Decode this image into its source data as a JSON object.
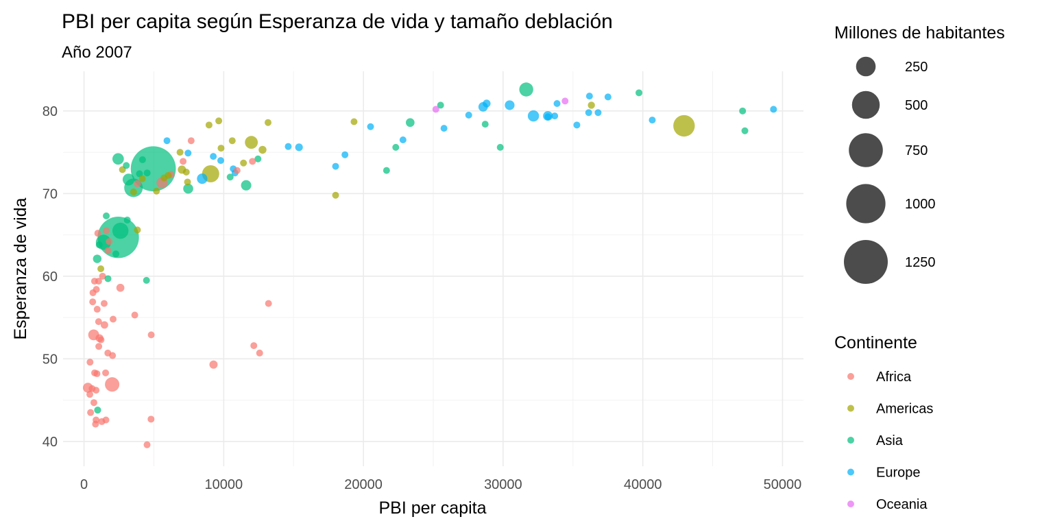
{
  "chart_data": {
    "type": "scatter",
    "title": "PBI per capita según Esperanza de vida y tamaño deblación",
    "subtitle": "Año 2007",
    "xlabel": "PBI per capita",
    "ylabel": "Esperanza de vida",
    "xlim": [
      -1500,
      51500
    ],
    "ylim": [
      37,
      84.8
    ],
    "x_ticks": [
      0,
      10000,
      20000,
      30000,
      40000,
      50000
    ],
    "x_tick_labels": [
      "0",
      "10000",
      "20000",
      "30000",
      "40000",
      "50000"
    ],
    "y_ticks": [
      40,
      50,
      60,
      70,
      80
    ],
    "y_tick_labels": [
      "40",
      "50",
      "60",
      "70",
      "80"
    ],
    "grid": true,
    "size_legend": {
      "title": "Millones de habitantes",
      "entries": [
        {
          "label": "250",
          "value": 250
        },
        {
          "label": "500",
          "value": 500
        },
        {
          "label": "750",
          "value": 750
        },
        {
          "label": "1000",
          "value": 1000
        },
        {
          "label": "1250",
          "value": 1250
        }
      ]
    },
    "color_legend": {
      "title": "Continente",
      "entries": [
        {
          "label": "Africa",
          "color": "#F8766D"
        },
        {
          "label": "Americas",
          "color": "#A3A500"
        },
        {
          "label": "Asia",
          "color": "#00BF7D"
        },
        {
          "label": "Europe",
          "color": "#00B0F6"
        },
        {
          "label": "Oceania",
          "color": "#E76BF3"
        }
      ]
    },
    "series": [
      {
        "name": "Africa",
        "color": "#F8766D",
        "points": [
          [
            6223,
            72.3,
            33
          ],
          [
            4797,
            42.7,
            12
          ],
          [
            1441,
            56.7,
            8
          ],
          [
            12570,
            50.7,
            2
          ],
          [
            1217,
            52.3,
            14
          ],
          [
            430,
            49.6,
            8
          ],
          [
            2042,
            50.4,
            18
          ],
          [
            706,
            44.7,
            4
          ],
          [
            1704,
            50.7,
            10
          ],
          [
            986,
            65.2,
            1
          ],
          [
            278,
            46.5,
            65
          ],
          [
            3633,
            55.3,
            4
          ],
          [
            1545,
            48.3,
            18
          ],
          [
            2082,
            54.8,
            2
          ],
          [
            5581,
            71.3,
            80
          ],
          [
            12154,
            51.6,
            1
          ],
          [
            641,
            58.0,
            5
          ],
          [
            691,
            52.9,
            77
          ],
          [
            13206,
            56.7,
            1
          ],
          [
            753,
            59.4,
            2
          ],
          [
            1328,
            60.0,
            23
          ],
          [
            943,
            56.0,
            10
          ],
          [
            580,
            46.4,
            1
          ],
          [
            1464,
            54.1,
            36
          ],
          [
            1569,
            42.6,
            2
          ],
          [
            415,
            45.7,
            3
          ],
          [
            12057,
            73.9,
            6
          ],
          [
            1045,
            59.4,
            19
          ],
          [
            760,
            48.3,
            14
          ],
          [
            1043,
            54.5,
            12
          ],
          [
            1803,
            64.2,
            3
          ],
          [
            10957,
            72.8,
            1
          ],
          [
            3820,
            71.2,
            33
          ],
          [
            824,
            42.1,
            20
          ],
          [
            4811,
            52.9,
            2
          ],
          [
            620,
            56.9,
            13
          ],
          [
            2014,
            46.9,
            135
          ],
          [
            7670,
            76.4,
            1
          ],
          [
            863,
            46.2,
            9
          ],
          [
            1598,
            65.5,
            0.2
          ],
          [
            1712,
            63.1,
            12
          ],
          [
            862,
            42.6,
            6
          ],
          [
            926,
            48.2,
            9
          ],
          [
            9270,
            49.3,
            44
          ],
          [
            2602,
            58.6,
            42
          ],
          [
            4513,
            39.6,
            1
          ],
          [
            1107,
            52.5,
            40
          ],
          [
            883,
            58.4,
            6
          ],
          [
            7093,
            73.9,
            10
          ],
          [
            1056,
            51.5,
            29
          ],
          [
            1271,
            42.4,
            12
          ],
          [
            470,
            43.5,
            12
          ]
        ]
      },
      {
        "name": "Americas",
        "color": "#A3A500",
        "points": [
          [
            12779,
            75.3,
            40
          ],
          [
            3822,
            65.6,
            9
          ],
          [
            9066,
            72.4,
            190
          ],
          [
            36319,
            80.7,
            33
          ],
          [
            13172,
            78.6,
            16
          ],
          [
            7007,
            72.9,
            44
          ],
          [
            9645,
            78.8,
            4
          ],
          [
            8948,
            78.3,
            11
          ],
          [
            6025,
            72.2,
            9
          ],
          [
            6873,
            75.0,
            14
          ],
          [
            5728,
            71.9,
            7
          ],
          [
            5186,
            70.3,
            13
          ],
          [
            1202,
            60.9,
            9
          ],
          [
            3548,
            70.2,
            8
          ],
          [
            7321,
            72.6,
            3
          ],
          [
            11978,
            76.2,
            108
          ],
          [
            2749,
            72.9,
            6
          ],
          [
            9809,
            75.5,
            3
          ],
          [
            4173,
            71.8,
            6
          ],
          [
            7409,
            71.4,
            29
          ],
          [
            19329,
            78.7,
            4
          ],
          [
            18009,
            69.8,
            1
          ],
          [
            42952,
            78.2,
            301
          ],
          [
            10611,
            76.4,
            3
          ],
          [
            11416,
            73.7,
            26
          ]
        ]
      },
      {
        "name": "Asia",
        "color": "#00BF7D",
        "points": [
          [
            975,
            43.8,
            32
          ],
          [
            29796,
            75.6,
            1
          ],
          [
            1391,
            64.1,
            150
          ],
          [
            1714,
            59.7,
            14
          ],
          [
            4959,
            73.0,
            1319
          ],
          [
            39725,
            82.2,
            7
          ],
          [
            2452,
            64.7,
            1110
          ],
          [
            3541,
            70.7,
            224
          ],
          [
            11606,
            71.0,
            69
          ],
          [
            4471,
            59.5,
            28
          ],
          [
            25523,
            80.7,
            6
          ],
          [
            31656,
            82.6,
            127
          ],
          [
            4519,
            72.5,
            6
          ],
          [
            1593,
            67.3,
            23
          ],
          [
            23348,
            78.6,
            49
          ],
          [
            47307,
            77.6,
            2
          ],
          [
            10461,
            72.0,
            4
          ],
          [
            12452,
            74.2,
            24
          ],
          [
            3096,
            66.8,
            3
          ],
          [
            944,
            62.1,
            47
          ],
          [
            1091,
            63.8,
            29
          ],
          [
            22316,
            75.6,
            3
          ],
          [
            2606,
            65.5,
            169
          ],
          [
            3190,
            71.7,
            91
          ],
          [
            21655,
            72.8,
            27
          ],
          [
            47143,
            80.0,
            5
          ],
          [
            3970,
            72.4,
            20
          ],
          [
            4185,
            74.1,
            19
          ],
          [
            28718,
            78.4,
            23
          ],
          [
            7458,
            70.6,
            65
          ],
          [
            2442,
            74.2,
            85
          ],
          [
            3026,
            73.4,
            4
          ],
          [
            2281,
            62.7,
            22
          ]
        ]
      },
      {
        "name": "Europe",
        "color": "#00B0F6",
        "points": [
          [
            5937,
            76.4,
            4
          ],
          [
            36126,
            79.8,
            8
          ],
          [
            33693,
            79.4,
            10
          ],
          [
            7446,
            74.9,
            5
          ],
          [
            10681,
            73.0,
            7
          ],
          [
            14619,
            75.7,
            4
          ],
          [
            22833,
            76.5,
            10
          ],
          [
            35278,
            78.3,
            5
          ],
          [
            33207,
            79.3,
            5
          ],
          [
            30470,
            80.7,
            61
          ],
          [
            32170,
            79.4,
            82
          ],
          [
            27538,
            79.5,
            11
          ],
          [
            18009,
            73.3,
            10
          ],
          [
            36181,
            81.8,
            0.3
          ],
          [
            40676,
            78.9,
            4
          ],
          [
            28570,
            80.5,
            58
          ],
          [
            9254,
            74.5,
            1
          ],
          [
            36798,
            79.8,
            16
          ],
          [
            49357,
            80.2,
            5
          ],
          [
            15390,
            75.6,
            38
          ],
          [
            20510,
            78.1,
            11
          ],
          [
            10808,
            72.5,
            22
          ],
          [
            9786,
            74.0,
            10
          ],
          [
            18678,
            74.7,
            5
          ],
          [
            25768,
            77.9,
            2
          ],
          [
            28821,
            80.9,
            40
          ],
          [
            33860,
            80.9,
            9
          ],
          [
            37506,
            81.7,
            8
          ],
          [
            8458,
            71.8,
            71
          ],
          [
            33203,
            79.4,
            60
          ]
        ]
      },
      {
        "name": "Oceania",
        "color": "#E76BF3",
        "points": [
          [
            34435,
            81.2,
            20
          ],
          [
            25185,
            80.2,
            4
          ]
        ]
      }
    ]
  }
}
